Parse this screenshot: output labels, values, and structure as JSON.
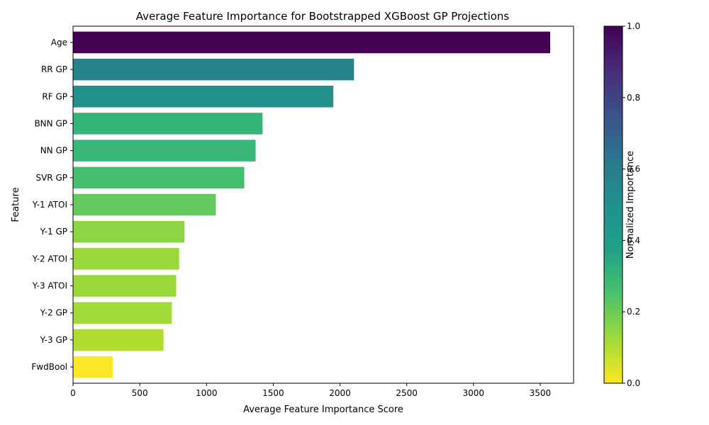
{
  "chart_data": {
    "type": "bar",
    "orientation": "horizontal",
    "title": "Average Feature Importance for Bootstrapped XGBoost GP Projections",
    "xlabel": "Average Feature Importance Score",
    "ylabel": "Feature",
    "categories": [
      "Age",
      "RR GP",
      "RF GP",
      "BNN GP",
      "NN GP",
      "SVR GP",
      "Y-1 ATOI",
      "Y-1 GP",
      "Y-2 ATOI",
      "Y-3 ATOI",
      "Y-2 GP",
      "Y-3 GP",
      "FwdBool"
    ],
    "values": [
      3575,
      2105,
      1950,
      1420,
      1368,
      1283,
      1070,
      835,
      795,
      773,
      740,
      678,
      297
    ],
    "normalized": [
      1.0,
      0.55,
      0.5,
      0.34,
      0.33,
      0.3,
      0.24,
      0.17,
      0.15,
      0.15,
      0.14,
      0.12,
      0.0
    ],
    "xlim": [
      0,
      3750
    ],
    "xticks": [
      0,
      500,
      1000,
      1500,
      2000,
      2500,
      3000,
      3500
    ],
    "grid": false,
    "colormap": "viridis_r",
    "colorbar": {
      "label": "Normalized Importance",
      "range": [
        0.0,
        1.0
      ],
      "ticks": [
        "0.0",
        "0.2",
        "0.4",
        "0.6",
        "0.8",
        "1.0"
      ]
    }
  }
}
